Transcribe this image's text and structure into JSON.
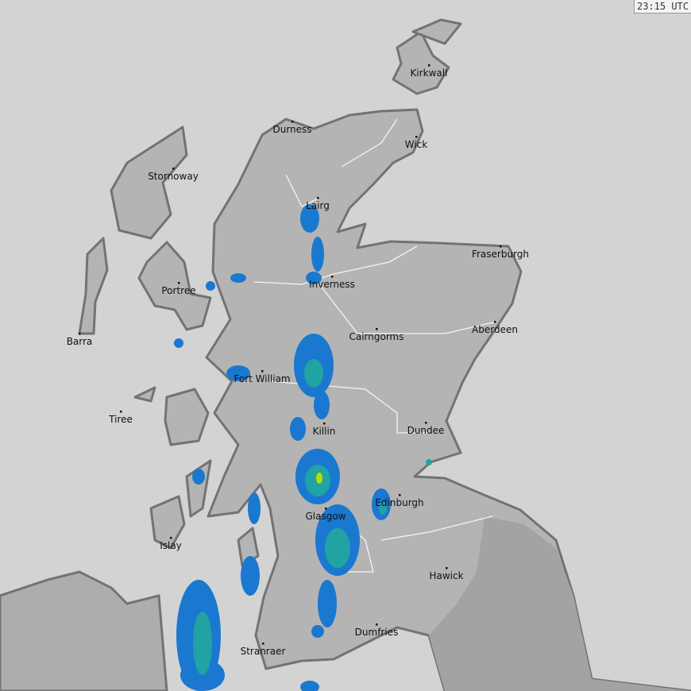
{
  "timestamp": "23:15 UTC",
  "colors": {
    "sea": "#d3d3d3",
    "land": "#b4b4b4",
    "england": "#a3a3a3",
    "coast": "#737373",
    "rain_light": "#1a78d0",
    "rain_moderate": "#22a3a3",
    "rain_heavy": "#b6de00"
  },
  "places": [
    {
      "name": "Kirkwall"
    },
    {
      "name": "Durness"
    },
    {
      "name": "Wick"
    },
    {
      "name": "Stornoway"
    },
    {
      "name": "Lairg"
    },
    {
      "name": "Fraserburgh"
    },
    {
      "name": "Portree"
    },
    {
      "name": "Inverness"
    },
    {
      "name": "Barra"
    },
    {
      "name": "Cairngorms"
    },
    {
      "name": "Aberdeen"
    },
    {
      "name": "Fort William"
    },
    {
      "name": "Tiree"
    },
    {
      "name": "Killin"
    },
    {
      "name": "Dundee"
    },
    {
      "name": "Edinburgh"
    },
    {
      "name": "Glasgow"
    },
    {
      "name": "Islay"
    },
    {
      "name": "Hawick"
    },
    {
      "name": "Dumfries"
    },
    {
      "name": "Stranraer"
    }
  ]
}
